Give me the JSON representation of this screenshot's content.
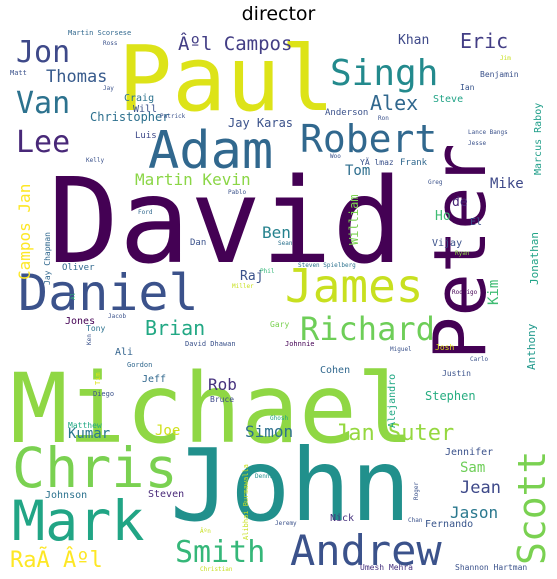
{
  "chart_data": {
    "type": "wordcloud",
    "title": "director",
    "words": [
      {
        "text": "David",
        "weight": 100,
        "color": "#440154"
      },
      {
        "text": "Michael",
        "weight": 92,
        "color": "#8fd744"
      },
      {
        "text": "John",
        "weight": 88,
        "color": "#21908c"
      },
      {
        "text": "Paul",
        "weight": 72,
        "color": "#dde318"
      },
      {
        "text": "Peter",
        "weight": 64,
        "color": "#440154"
      },
      {
        "text": "Chris",
        "weight": 56,
        "color": "#7ad151"
      },
      {
        "text": "Mark",
        "weight": 52,
        "color": "#21a585"
      },
      {
        "text": "Adam",
        "weight": 48,
        "color": "#31688e"
      },
      {
        "text": "Daniel",
        "weight": 48,
        "color": "#3b528b"
      },
      {
        "text": "James",
        "weight": 46,
        "color": "#c8e020"
      },
      {
        "text": "Andrew",
        "weight": 42,
        "color": "#3b528b"
      },
      {
        "text": "Scott",
        "weight": 40,
        "color": "#7ad151"
      },
      {
        "text": "Robert",
        "weight": 38,
        "color": "#31688e"
      },
      {
        "text": "Singh",
        "weight": 36,
        "color": "#238a8d"
      },
      {
        "text": "Richard",
        "weight": 34,
        "color": "#6ece58"
      },
      {
        "text": "Smith",
        "weight": 30,
        "color": "#35b779"
      },
      {
        "text": "Jon",
        "weight": 30,
        "color": "#3e4989"
      },
      {
        "text": "Lee",
        "weight": 30,
        "color": "#482878"
      },
      {
        "text": "Van",
        "weight": 28,
        "color": "#2c728e"
      },
      {
        "text": "RaÃ Âºl",
        "weight": 22,
        "color": "#fde725"
      },
      {
        "text": "Jan Suter",
        "weight": 22,
        "color": "#95d840"
      },
      {
        "text": "Brian",
        "weight": 20,
        "color": "#22a884"
      },
      {
        "text": "Alex",
        "weight": 20,
        "color": "#31688e"
      },
      {
        "text": "Eric",
        "weight": 18,
        "color": "#433e85"
      },
      {
        "text": "Âºl Campos",
        "weight": 18,
        "color": "#433e85"
      },
      {
        "text": "Thomas",
        "weight": 17,
        "color": "#375a8c"
      },
      {
        "text": "Jean",
        "weight": 16,
        "color": "#3e4989"
      },
      {
        "text": "Jason",
        "weight": 16,
        "color": "#2a788e"
      },
      {
        "text": "Kumar",
        "weight": 14,
        "color": "#2a788e"
      },
      {
        "text": "Simon",
        "weight": 15,
        "color": "#2d708e"
      },
      {
        "text": "Martin Kevin",
        "weight": 15,
        "color": "#8bd646"
      },
      {
        "text": "Campos Jan",
        "weight": 15,
        "color": "#fde725"
      },
      {
        "text": "Tom",
        "weight": 14,
        "color": "#2e6e8e"
      },
      {
        "text": "Ben",
        "weight": 14,
        "color": "#26828e"
      },
      {
        "text": "Rob",
        "weight": 14,
        "color": "#46327e"
      },
      {
        "text": "Sam",
        "weight": 13,
        "color": "#6ece58"
      },
      {
        "text": "Kim",
        "weight": 13,
        "color": "#3fbc73"
      },
      {
        "text": "Joe",
        "weight": 13,
        "color": "#d0e11c"
      },
      {
        "text": "Khan",
        "weight": 12,
        "color": "#3e4989"
      },
      {
        "text": "Mike",
        "weight": 12,
        "color": "#3e4989"
      },
      {
        "text": "Raj",
        "weight": 12,
        "color": "#3b528b"
      },
      {
        "text": "Ho",
        "weight": 12,
        "color": "#3fbc73"
      },
      {
        "text": "de",
        "weight": 12,
        "color": "#482677"
      },
      {
        "text": "Stephen",
        "weight": 12,
        "color": "#27ad81"
      },
      {
        "text": "Anthony",
        "weight": 11,
        "color": "#1f988b"
      },
      {
        "text": "Jonathan",
        "weight": 11,
        "color": "#20a386"
      },
      {
        "text": "William",
        "weight": 11,
        "color": "#7ad151"
      },
      {
        "text": "Jay Karas",
        "weight": 11,
        "color": "#3b528b"
      },
      {
        "text": "Christopher",
        "weight": 11,
        "color": "#2d708e"
      },
      {
        "text": "Marcus Raboy",
        "weight": 10,
        "color": "#1f9e89"
      },
      {
        "text": "Cohen",
        "weight": 9,
        "color": "#31688e"
      },
      {
        "text": "Jennifer",
        "weight": 9,
        "color": "#3b528b"
      },
      {
        "text": "Fernando",
        "weight": 9,
        "color": "#39568c"
      },
      {
        "text": "Umesh Mehra",
        "weight": 8,
        "color": "#46327e"
      },
      {
        "text": "Shannon Hartman",
        "weight": 8,
        "color": "#3b528b"
      },
      {
        "text": "Steven",
        "weight": 9,
        "color": "#482878"
      },
      {
        "text": "Johnson",
        "weight": 9,
        "color": "#2c728e"
      },
      {
        "text": "Nick",
        "weight": 9,
        "color": "#46327e"
      },
      {
        "text": "Jones",
        "weight": 9,
        "color": "#440154"
      },
      {
        "text": "Jeff",
        "weight": 9,
        "color": "#31688e"
      },
      {
        "text": "Ali",
        "weight": 9,
        "color": "#33638d"
      },
      {
        "text": "Alejandro",
        "weight": 9,
        "color": "#22a884"
      },
      {
        "text": "Josh",
        "weight": 8,
        "color": "#dde318"
      },
      {
        "text": "Justin",
        "weight": 7,
        "color": "#3b528b"
      },
      {
        "text": "Vijay",
        "weight": 9,
        "color": "#3b528b"
      },
      {
        "text": "Frank",
        "weight": 8,
        "color": "#31688e"
      },
      {
        "text": "El",
        "weight": 10,
        "color": "#3b528b"
      },
      {
        "text": "Anderson",
        "weight": 8,
        "color": "#3b528b"
      },
      {
        "text": "Steve",
        "weight": 9,
        "color": "#20a386"
      },
      {
        "text": "Benjamin",
        "weight": 8,
        "color": "#3b528b"
      },
      {
        "text": "Ian",
        "weight": 8,
        "color": "#39568c"
      },
      {
        "text": "Craig",
        "weight": 9,
        "color": "#2c728e"
      },
      {
        "text": "Will",
        "weight": 9,
        "color": "#3b528b"
      },
      {
        "text": "Luis",
        "weight": 8,
        "color": "#3e4989"
      },
      {
        "text": "Jay Chapman",
        "weight": 8,
        "color": "#31688e"
      },
      {
        "text": "Oliver",
        "weight": 8,
        "color": "#31688e"
      },
      {
        "text": "Tony",
        "weight": 8,
        "color": "#2c728e"
      },
      {
        "text": "Gary",
        "weight": 8,
        "color": "#7ad151"
      },
      {
        "text": "Dan",
        "weight": 9,
        "color": "#3b528b"
      },
      {
        "text": "Bruce",
        "weight": 8,
        "color": "#3e4989"
      },
      {
        "text": "Matthew",
        "weight": 8,
        "color": "#22a884"
      },
      {
        "text": "Diego",
        "weight": 7,
        "color": "#3b528b"
      },
      {
        "text": "Tim",
        "weight": 7,
        "color": "#dde318"
      },
      {
        "text": "Gordon",
        "weight": 7,
        "color": "#31688e"
      },
      {
        "text": "David Dhawan",
        "weight": 7,
        "color": "#3b528b"
      },
      {
        "text": "Johnnie",
        "weight": 7,
        "color": "#440154"
      },
      {
        "text": "Miguel",
        "weight": 6,
        "color": "#3b528b"
      },
      {
        "text": "Carlo",
        "weight": 6,
        "color": "#3b528b"
      },
      {
        "text": "Rodrigo",
        "weight": 6,
        "color": "#440154"
      },
      {
        "text": "Steven Spielberg",
        "weight": 6,
        "color": "#2c728e"
      },
      {
        "text": "Miller",
        "weight": 6,
        "color": "#c8e020"
      },
      {
        "text": "Sean",
        "weight": 6,
        "color": "#2c728e"
      },
      {
        "text": "Phil",
        "weight": 6,
        "color": "#35b779"
      },
      {
        "text": "Pablo",
        "weight": 6,
        "color": "#3b528b"
      },
      {
        "text": "Ford",
        "weight": 6,
        "color": "#31688e"
      },
      {
        "text": "Greg",
        "weight": 6,
        "color": "#3b528b"
      },
      {
        "text": "Ryan",
        "weight": 6,
        "color": "#8bd646"
      },
      {
        "text": "Lance Bangs",
        "weight": 6,
        "color": "#3b528b"
      },
      {
        "text": "Jesse",
        "weight": 6,
        "color": "#3b528b"
      },
      {
        "text": "Woo",
        "weight": 6,
        "color": "#3b528b"
      },
      {
        "text": "YÃ lmaz",
        "weight": 8,
        "color": "#3b528b"
      },
      {
        "text": "Kelly",
        "weight": 6,
        "color": "#3b528b"
      },
      {
        "text": "Patrick",
        "weight": 6,
        "color": "#3b528b"
      },
      {
        "text": "Ron",
        "weight": 6,
        "color": "#3b528b"
      },
      {
        "text": "Martin Scorsese",
        "weight": 7,
        "color": "#31688e"
      },
      {
        "text": "Ross",
        "weight": 6,
        "color": "#3b528b"
      },
      {
        "text": "Matt",
        "weight": 7,
        "color": "#3b528b"
      },
      {
        "text": "Jay",
        "weight": 6,
        "color": "#3b528b"
      },
      {
        "text": "Jim",
        "weight": 6,
        "color": "#c8e020"
      },
      {
        "text": "Jacob",
        "weight": 6,
        "color": "#3b528b"
      },
      {
        "text": "Al",
        "weight": 6,
        "color": "#35b779"
      },
      {
        "text": "Ken",
        "weight": 6,
        "color": "#3b528b"
      },
      {
        "text": "Ghosh",
        "weight": 6,
        "color": "#21a585"
      },
      {
        "text": "Dennis",
        "weight": 6,
        "color": "#21908c"
      },
      {
        "text": "Roger",
        "weight": 6,
        "color": "#3b528b"
      },
      {
        "text": "Chan",
        "weight": 6,
        "color": "#3b528b"
      },
      {
        "text": "Jeremy",
        "weight": 6,
        "color": "#3b528b"
      },
      {
        "text": "Âºn",
        "weight": 6,
        "color": "#c8e020"
      },
      {
        "text": "Christian",
        "weight": 6,
        "color": "#c8e020"
      },
      {
        "text": "Alibhai Burmawalla",
        "weight": 7,
        "color": "#c8e020"
      }
    ]
  }
}
